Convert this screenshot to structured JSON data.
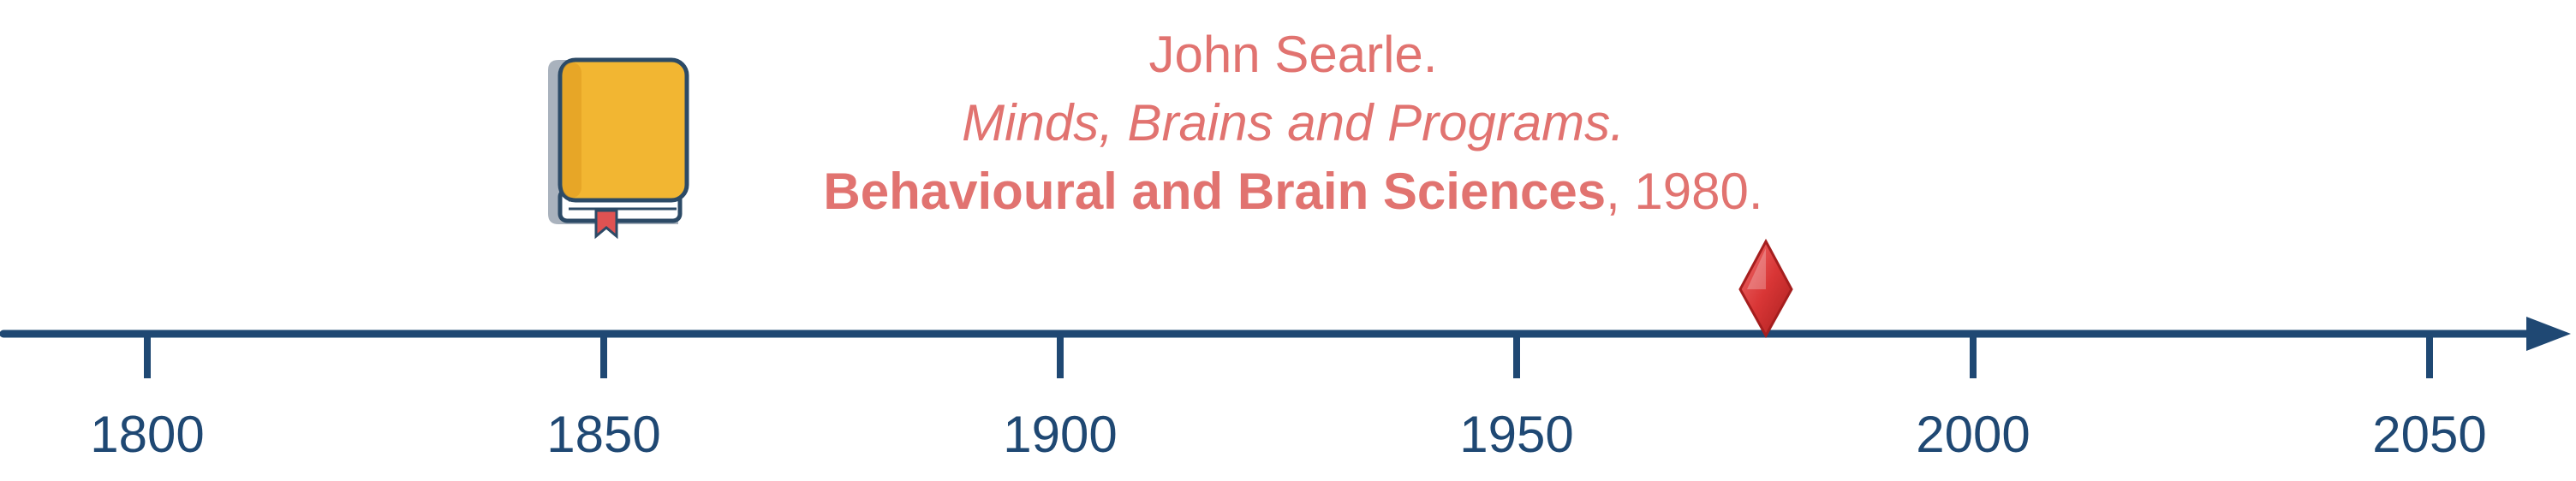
{
  "colors": {
    "axis": "#1f4873",
    "citation_text": "#e17370",
    "book_cover": "#f2b632",
    "book_outline": "#2c4a66",
    "book_shadow": "#9aa5b1",
    "bookmark": "#e05252",
    "marker_fill": "#d93636",
    "marker_edge": "#a51e1e"
  },
  "icons": {
    "book": "book-icon",
    "marker": "diamond-marker-icon",
    "axis_arrow": "arrowhead-icon"
  },
  "citation": {
    "author": "John Searle.",
    "title": "Minds, Brains and Programs.",
    "venue": "Behavioural and Brain Sciences",
    "year_suffix": ", 1980."
  },
  "timeline": {
    "ticks": [
      "1800",
      "1850",
      "1900",
      "1950",
      "2000",
      "2050"
    ],
    "event_year": 1980
  }
}
